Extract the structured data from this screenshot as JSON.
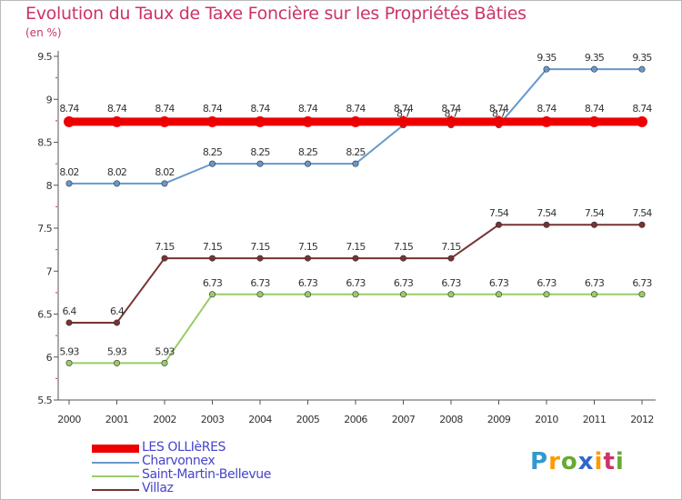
{
  "header": {
    "title": "Evolution du Taux de Taxe Foncière sur les Propriétés Bâties",
    "subtitle": "(en %)"
  },
  "logo": {
    "letters": [
      "P",
      "r",
      "o",
      "x",
      "i",
      "t",
      "i"
    ],
    "colors": [
      "#3399cc",
      "#ff9900",
      "#66aa33",
      "#3366cc",
      "#ff9900",
      "#cc3366",
      "#66aa33"
    ]
  },
  "chart_data": {
    "type": "line",
    "title": "Evolution du Taux de Taxe Foncière sur les Propriétés Bâties",
    "ylabel": "(en %)",
    "xlabel": "",
    "x": [
      "2000",
      "2001",
      "2002",
      "2003",
      "2004",
      "2005",
      "2006",
      "2007",
      "2008",
      "2009",
      "2010",
      "2011",
      "2012"
    ],
    "ylim": [
      5.5,
      9.5
    ],
    "yticks": [
      "5.5",
      "6",
      "6.5",
      "7",
      "7.5",
      "8",
      "8.5",
      "9",
      "9.5"
    ],
    "grid": false,
    "legend": "bottom-left",
    "series": [
      {
        "name": "LES OLLIèRES",
        "color": "#ee0000",
        "values": [
          8.74,
          8.74,
          8.74,
          8.74,
          8.74,
          8.74,
          8.74,
          8.74,
          8.74,
          8.74,
          8.74,
          8.74,
          8.74
        ],
        "labels": [
          "8.74",
          "8.74",
          "8.74",
          "8.74",
          "8.74",
          "8.74",
          "8.74",
          "8.74",
          "8.74",
          "8.74",
          "8.74",
          "8.74",
          "8.74"
        ]
      },
      {
        "name": "Charvonnex",
        "color": "#6699cc",
        "values": [
          8.02,
          8.02,
          8.02,
          8.25,
          8.25,
          8.25,
          8.25,
          8.7,
          8.7,
          8.7,
          9.35,
          9.35,
          9.35
        ],
        "labels": [
          "8.02",
          "8.02",
          "8.02",
          "8.25",
          "8.25",
          "8.25",
          "8.25",
          "8.7",
          "8.7",
          "8.7",
          "9.35",
          "9.35",
          "9.35"
        ]
      },
      {
        "name": "Saint-Martin-Bellevue",
        "color": "#99cc66",
        "values": [
          5.93,
          5.93,
          5.93,
          6.73,
          6.73,
          6.73,
          6.73,
          6.73,
          6.73,
          6.73,
          6.73,
          6.73,
          6.73
        ],
        "labels": [
          "5.93",
          "5.93",
          "5.93",
          "6.73",
          "6.73",
          "6.73",
          "6.73",
          "6.73",
          "6.73",
          "6.73",
          "6.73",
          "6.73",
          "6.73"
        ]
      },
      {
        "name": "Villaz",
        "color": "#773333",
        "values": [
          6.4,
          6.4,
          7.15,
          7.15,
          7.15,
          7.15,
          7.15,
          7.15,
          7.15,
          7.54,
          7.54,
          7.54,
          7.54
        ],
        "labels": [
          "6.4",
          "6.4",
          "7.15",
          "7.15",
          "7.15",
          "7.15",
          "7.15",
          "7.15",
          "7.15",
          "7.54",
          "7.54",
          "7.54",
          "7.54"
        ]
      }
    ]
  }
}
